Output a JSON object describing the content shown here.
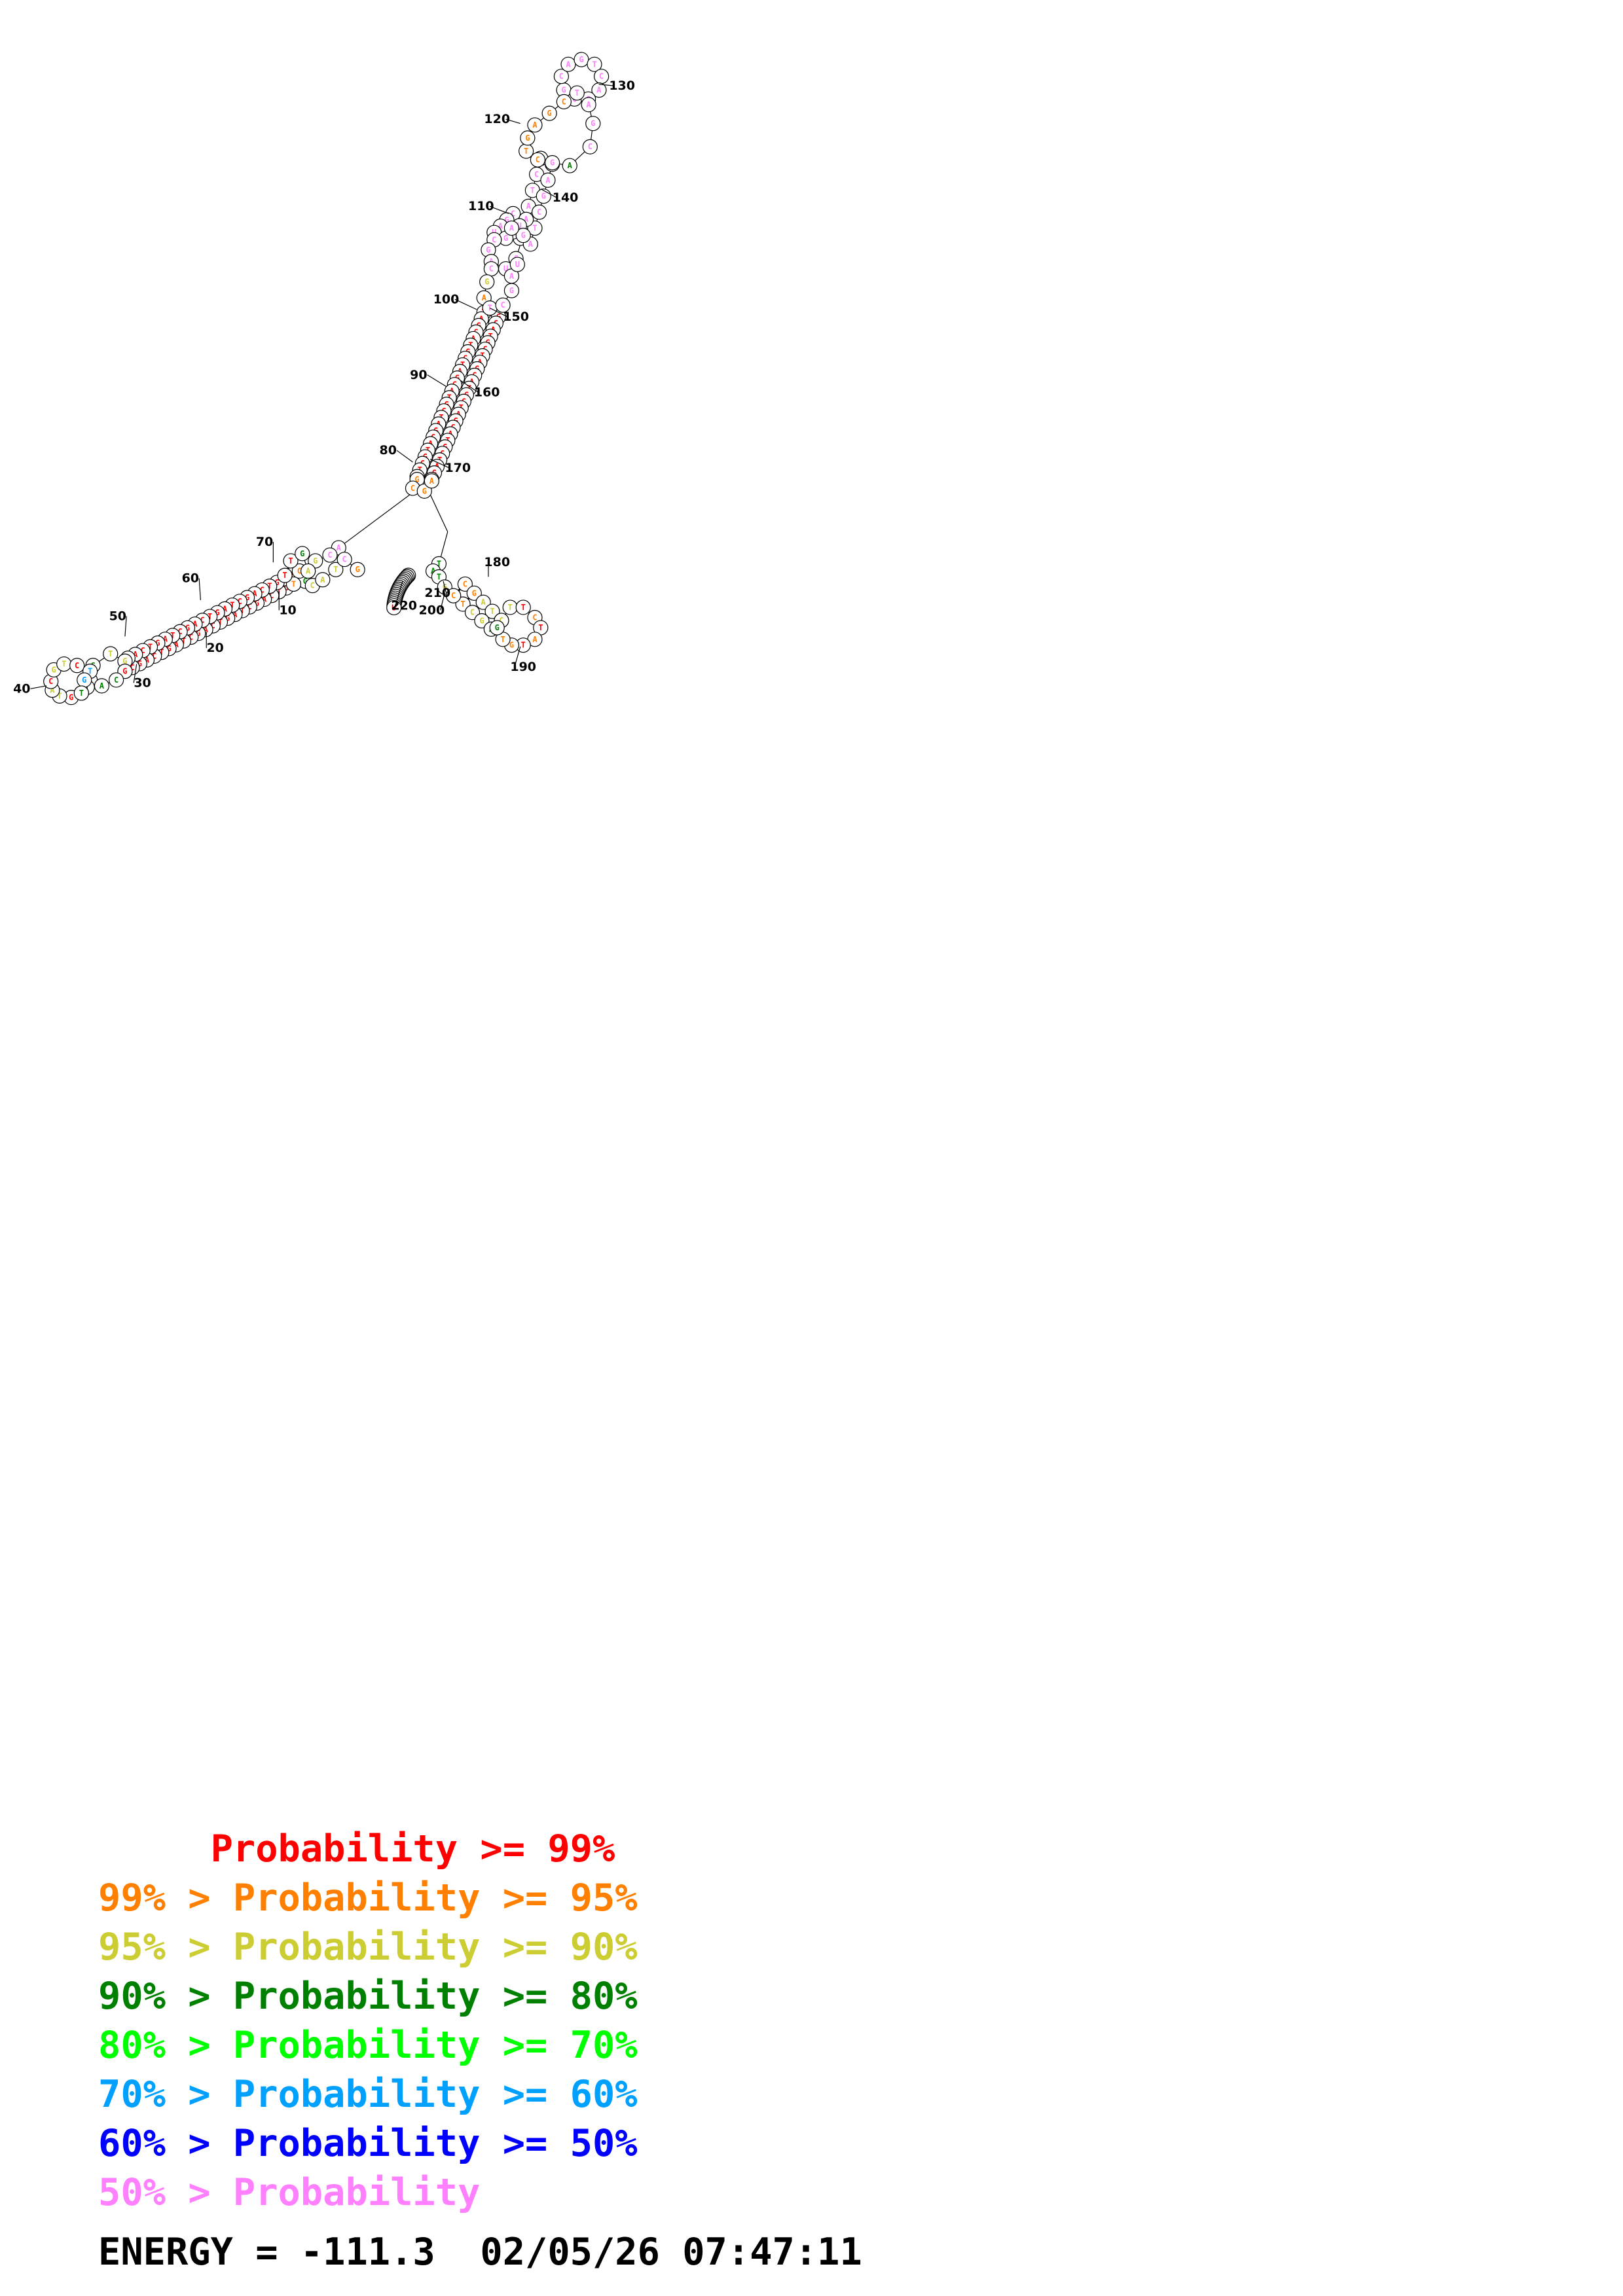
{
  "legend": [
    {
      "text": "     Probability >= 99%",
      "color": "#ff0000"
    },
    {
      "text": "99% > Probability >= 95%",
      "color": "#ff8000"
    },
    {
      "text": "95% > Probability >= 90%",
      "color": "#cccc33"
    },
    {
      "text": "90% > Probability >= 80%",
      "color": "#008000"
    },
    {
      "text": "80% > Probability >= 70%",
      "color": "#00ff00"
    },
    {
      "text": "70% > Probability >= 60%",
      "color": "#00a0ff"
    },
    {
      "text": "60% > Probability >= 50%",
      "color": "#0000ff"
    },
    {
      "text": "50% > Probability",
      "color": "#ff80ff"
    }
  ],
  "energy_line": "ENERGY = -111.3  02/05/26 07:47:11",
  "tick_labels": [
    "10",
    "20",
    "30",
    "40",
    "50",
    "60",
    "70",
    "80",
    "90",
    "100",
    "110",
    "120",
    "130",
    "140",
    "150",
    "160",
    "170",
    "180",
    "190",
    "200",
    "210",
    "220"
  ],
  "colors": {
    "p99": "#ff0000",
    "p95": "#ff8000",
    "p90": "#cccc33",
    "p80": "#008000",
    "p70": "#00ff00",
    "p60": "#00a0ff",
    "p50": "#0000ff",
    "plow": "#ff80ff"
  }
}
